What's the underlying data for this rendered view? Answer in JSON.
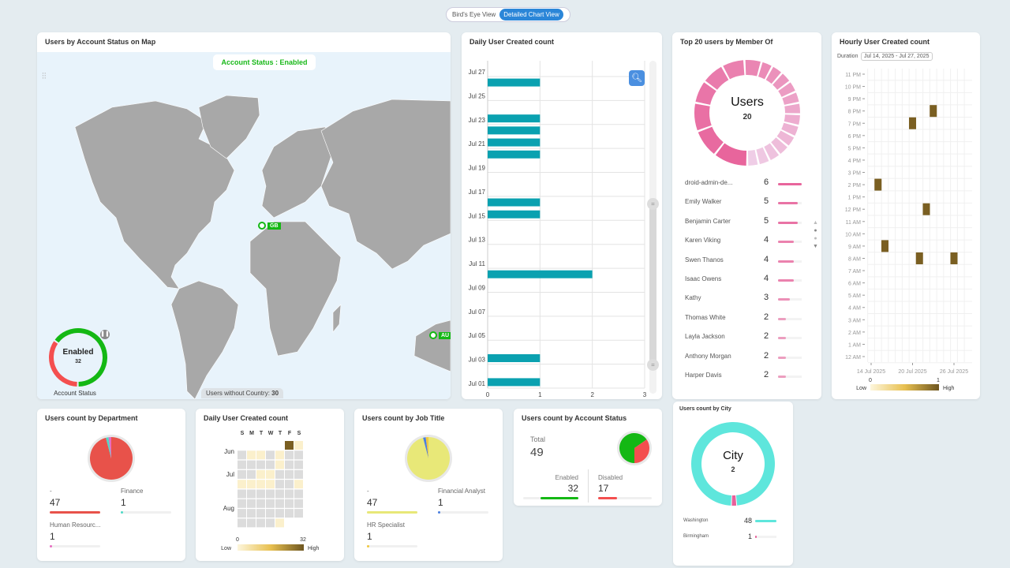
{
  "view_toggle": {
    "options": [
      "Bird's Eye View",
      "Detailed Chart View"
    ],
    "selected": "Detailed Chart View"
  },
  "map_card": {
    "title": "Users by Account Status on Map",
    "status_label": "Account Status : Enabled",
    "markers": [
      {
        "code": "GB"
      },
      {
        "code": "AU"
      }
    ],
    "donut": {
      "label": "Enabled",
      "value": "32",
      "caption": "Account Status",
      "segments": [
        {
          "name": "Enabled",
          "value": 32,
          "color": "#14b814"
        },
        {
          "name": "Disabled",
          "value": 17,
          "color": "#f44f4f"
        }
      ]
    },
    "no_country": "Users without Country: ",
    "no_country_value": "30",
    "land_color": "#a8a8a8",
    "sea_color": "#e8f3fb"
  },
  "daily_bar": {
    "title": "Daily User Created count",
    "chart_data": {
      "type": "bar",
      "orientation": "horizontal",
      "y_ticks": [
        "Jul 01",
        "Jul 03",
        "Jul 05",
        "Jul 07",
        "Jul 09",
        "Jul 11",
        "Jul 13",
        "Jul 15",
        "Jul 17",
        "Jul 19",
        "Jul 21",
        "Jul 23",
        "Jul 25",
        "Jul 27"
      ],
      "x_ticks": [
        "0",
        "1",
        "2",
        "3"
      ],
      "xlim": [
        0,
        3
      ],
      "ylim": [
        "Jul 01",
        "Jul 27"
      ],
      "grid": true,
      "color": "#0aa1b0",
      "points": [
        {
          "date": "Jul 01",
          "value": 1
        },
        {
          "date": "Jul 03",
          "value": 1
        },
        {
          "date": "Jul 10",
          "value": 2
        },
        {
          "date": "Jul 15",
          "value": 1
        },
        {
          "date": "Jul 16",
          "value": 1
        },
        {
          "date": "Jul 20",
          "value": 1
        },
        {
          "date": "Jul 21",
          "value": 1
        },
        {
          "date": "Jul 22",
          "value": 1
        },
        {
          "date": "Jul 23",
          "value": 1
        },
        {
          "date": "Jul 26",
          "value": 1
        }
      ]
    }
  },
  "top20": {
    "title": "Top 20 users by Member Of",
    "center_label": "Users",
    "center_value": "20",
    "items": [
      {
        "name": "droid-admin-de...",
        "value": 6
      },
      {
        "name": "Emily Walker",
        "value": 5
      },
      {
        "name": "Benjamin Carter",
        "value": 5
      },
      {
        "name": "Karen Viking",
        "value": 4
      },
      {
        "name": "Swen Thanos",
        "value": 4
      },
      {
        "name": "Isaac Owens",
        "value": 4
      },
      {
        "name": "Kathy",
        "value": 3
      },
      {
        "name": "Thomas White",
        "value": 2
      },
      {
        "name": "Layla Jackson",
        "value": 2
      },
      {
        "name": "Anthony Morgan",
        "value": 2
      },
      {
        "name": "Harper Davis",
        "value": 2
      }
    ]
  },
  "hourly": {
    "title": "Hourly User Created count",
    "duration_label": "Duration",
    "duration_value": "Jul 14, 2025 - Jul 27, 2025",
    "chart_data": {
      "type": "heatmap",
      "y_ticks": [
        "12 AM",
        "1 AM",
        "2 AM",
        "3 AM",
        "4 AM",
        "5 AM",
        "6 AM",
        "7 AM",
        "8 AM",
        "9 AM",
        "10 AM",
        "11 AM",
        "12 PM",
        "1 PM",
        "2 PM",
        "3 PM",
        "4 PM",
        "5 PM",
        "6 PM",
        "7 PM",
        "8 PM",
        "9 PM",
        "10 PM",
        "11 PM"
      ],
      "x_ticks": [
        "14 Jul 2025",
        "20 Jul 2025",
        "26 Jul 2025"
      ],
      "grid": true,
      "cells": [
        {
          "date": "15 Jul 2025",
          "hour": "2 PM",
          "value": 1
        },
        {
          "date": "16 Jul 2025",
          "hour": "9 AM",
          "value": 1
        },
        {
          "date": "20 Jul 2025",
          "hour": "7 PM",
          "value": 1
        },
        {
          "date": "21 Jul 2025",
          "hour": "8 AM",
          "value": 1
        },
        {
          "date": "22 Jul 2025",
          "hour": "12 PM",
          "value": 1
        },
        {
          "date": "23 Jul 2025",
          "hour": "8 PM",
          "value": 1
        },
        {
          "date": "26 Jul 2025",
          "hour": "8 AM",
          "value": 1
        }
      ],
      "scale": {
        "min": "0",
        "max": "1",
        "low_label": "Low",
        "high_label": "High"
      }
    }
  },
  "dept": {
    "title": "Users count by Department",
    "items": [
      {
        "name": "-",
        "value": 47,
        "color": "#e8524a"
      },
      {
        "name": "Finance",
        "value": 1,
        "color": "#4dd9c6"
      },
      {
        "name": "Human Resourc...",
        "value": 1,
        "color": "#e86cc1"
      }
    ]
  },
  "calendar": {
    "title": "Daily User Created count",
    "weekdays": [
      "S",
      "M",
      "T",
      "W",
      "T",
      "F",
      "S"
    ],
    "months": [
      "Jun",
      "Jul",
      "Aug"
    ],
    "chart_data": {
      "type": "heatmap",
      "rows": [
        [
          null,
          null,
          null,
          null,
          null,
          "H",
          "L"
        ],
        [
          "G",
          "L",
          "L",
          "G",
          "L",
          "G",
          "G"
        ],
        [
          "G",
          "G",
          "G",
          "G",
          "L",
          "G",
          "G"
        ],
        [
          "G",
          "G",
          "L",
          "L",
          "G",
          "G",
          "G"
        ],
        [
          "L",
          "L",
          "L",
          "L",
          "G",
          "G",
          "L"
        ],
        [
          "G",
          "G",
          "G",
          "G",
          "G",
          "G",
          "G"
        ],
        [
          "G",
          "G",
          "G",
          "G",
          "G",
          "G",
          "G"
        ],
        [
          "G",
          "G",
          "G",
          "G",
          "G",
          "G",
          "G"
        ],
        [
          "G",
          "G",
          "G",
          "G",
          "L",
          null,
          null
        ]
      ],
      "scale": {
        "min": "0",
        "max": "32",
        "low_label": "Low",
        "high_label": "High"
      }
    }
  },
  "job": {
    "title": "Users count by Job Title",
    "items": [
      {
        "name": "-",
        "value": 47,
        "color": "#e8e878"
      },
      {
        "name": "Financial Analyst",
        "value": 1,
        "color": "#4a7fe0"
      },
      {
        "name": "HR Specialist",
        "value": 1,
        "color": "#f0c840"
      }
    ]
  },
  "account": {
    "title": "Users count by Account Status",
    "total_label": "Total",
    "total": "49",
    "items": [
      {
        "name": "Enabled",
        "value": 32,
        "color": "#14b814"
      },
      {
        "name": "Disabled",
        "value": 17,
        "color": "#f44f4f"
      }
    ]
  },
  "city": {
    "title": "Users count by City",
    "center_label": "City",
    "center_value": "2",
    "items": [
      {
        "name": "Washington",
        "value": 48,
        "color": "#5ee6dc"
      },
      {
        "name": "Birmingham",
        "value": 1,
        "color": "#e8609a"
      }
    ]
  }
}
